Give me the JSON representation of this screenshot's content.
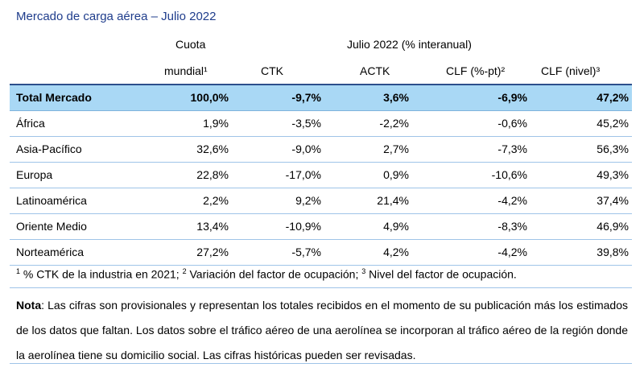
{
  "title": "Mercado de carga aérea – Julio 2022",
  "headers": {
    "cuota_line1": "Cuota",
    "cuota_line2": "mundial¹",
    "period": "Julio 2022 (% interanual)",
    "ctk": "CTK",
    "actk": "ACTK",
    "clf_pt": "CLF (%-pt)²",
    "clf_nivel": "CLF (nivel)³"
  },
  "rows": [
    {
      "name": "Total Mercado",
      "cuota": "100,0%",
      "ctk": "-9,7%",
      "actk": "3,6%",
      "clf_pt": "-6,9%",
      "clf_nivel": "47,2%"
    },
    {
      "name": "África",
      "cuota": "1,9%",
      "ctk": "-3,5%",
      "actk": "-2,2%",
      "clf_pt": "-0,6%",
      "clf_nivel": "45,2%"
    },
    {
      "name": "Asia-Pacífico",
      "cuota": "32,6%",
      "ctk": "-9,0%",
      "actk": "2,7%",
      "clf_pt": "-7,3%",
      "clf_nivel": "56,3%"
    },
    {
      "name": "Europa",
      "cuota": "22,8%",
      "ctk": "-17,0%",
      "actk": "0,9%",
      "clf_pt": "-10,6%",
      "clf_nivel": "49,3%"
    },
    {
      "name": "Latinoamérica",
      "cuota": "2,2%",
      "ctk": "9,2%",
      "actk": "21,4%",
      "clf_pt": "-4,2%",
      "clf_nivel": "37,4%"
    },
    {
      "name": "Oriente Medio",
      "cuota": "13,4%",
      "ctk": "-10,9%",
      "actk": "4,9%",
      "clf_pt": "-8,3%",
      "clf_nivel": "46,9%"
    },
    {
      "name": "Norteamérica",
      "cuota": "27,2%",
      "ctk": "-5,7%",
      "actk": "4,2%",
      "clf_pt": "-4,2%",
      "clf_nivel": "39,8%"
    }
  ],
  "footnotes": {
    "n1": "1",
    "t1": " % CTK de la industria en 2021; ",
    "n2": "2",
    "t2": " Variación del factor de ocupación; ",
    "n3": "3",
    "t3": " Nivel del factor de ocupación."
  },
  "note": {
    "label": "Nota",
    "text": ": Las cifras son provisionales y representan los totales recibidos en el momento de su publicación más los estimados de los datos que faltan. Los datos sobre el tráfico aéreo de una aerolínea se incorporan al tráfico aéreo de la región donde la aerolínea tiene su domicilio social. Las cifras históricas pueden ser revisadas."
  },
  "colors": {
    "title": "#1f3d8c",
    "total_row_bg": "#a9d8f5",
    "rule": "#9fc4e8"
  }
}
